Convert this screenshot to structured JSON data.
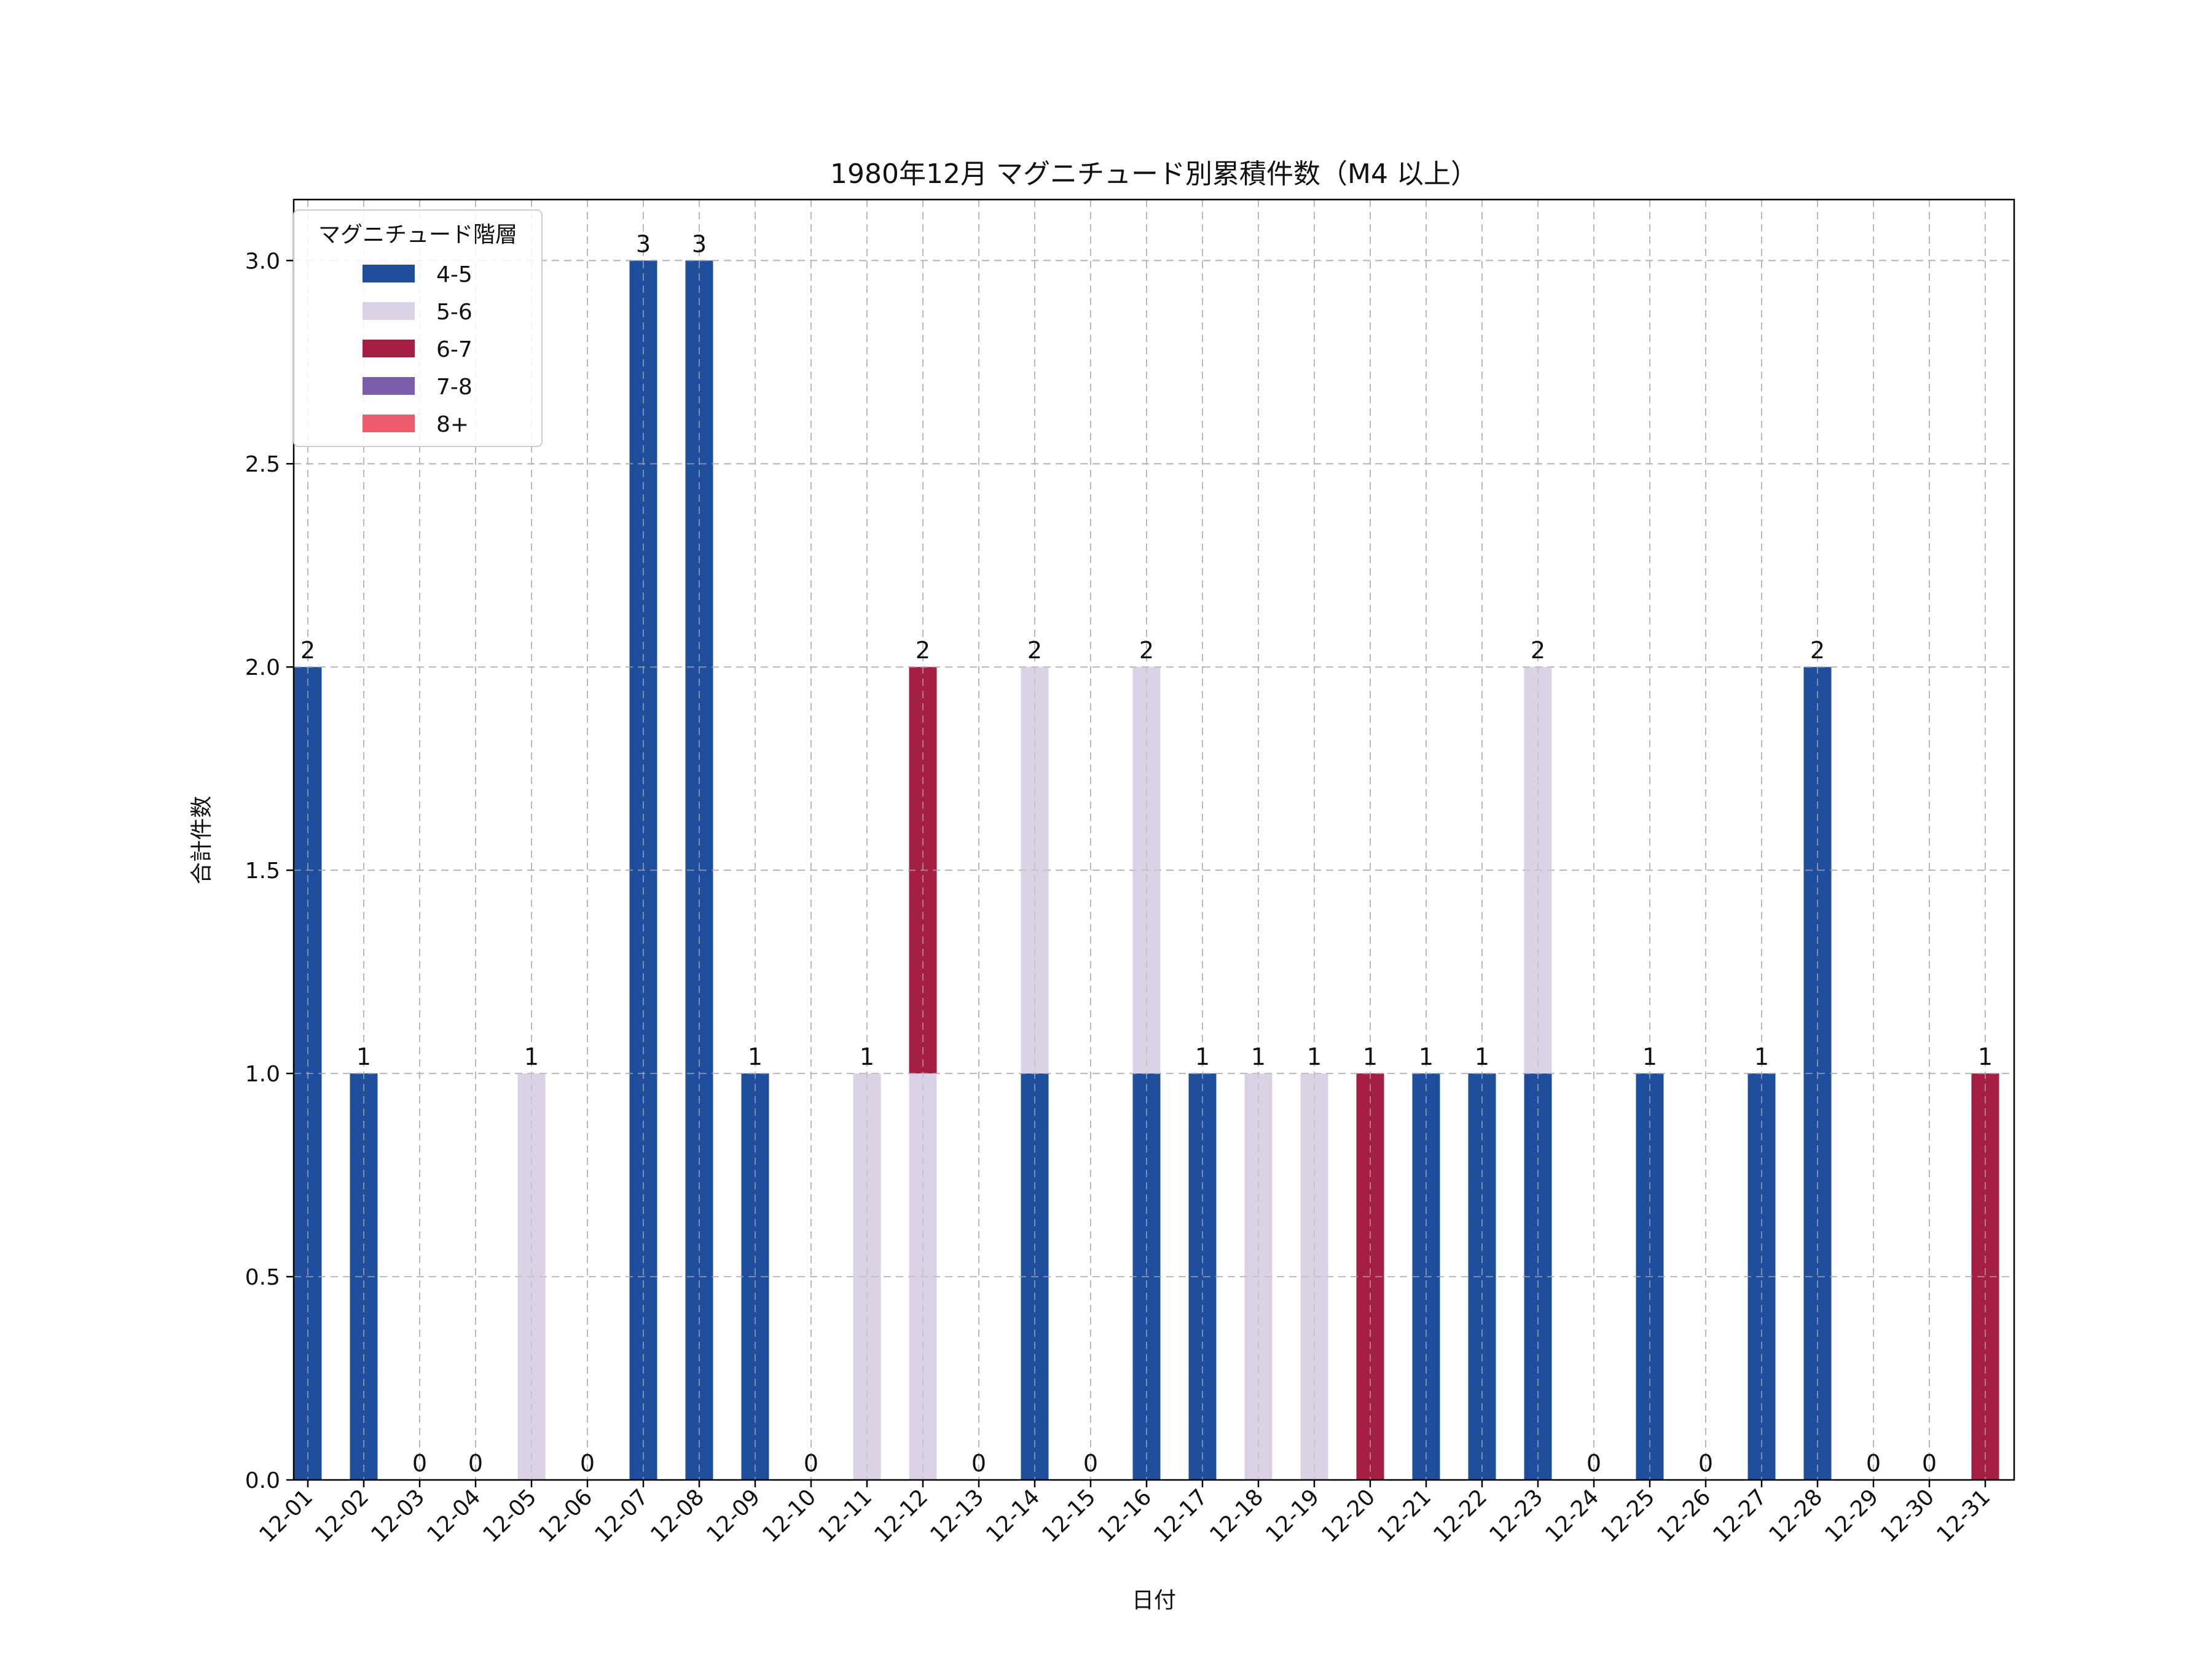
{
  "chart_data": {
    "type": "bar",
    "stacked": true,
    "title": "1980年12月 マグニチュード別累積件数（M4 以上）",
    "xlabel": "日付",
    "ylabel": "合計件数",
    "ylim": [
      0,
      3.15
    ],
    "yticks": [
      "0.0",
      "0.5",
      "1.0",
      "1.5",
      "2.0",
      "2.5",
      "3.0"
    ],
    "grid": true,
    "legend": {
      "title": "マグニチュード階層",
      "position": "top-left"
    },
    "categories": [
      "12-01",
      "12-02",
      "12-03",
      "12-04",
      "12-05",
      "12-06",
      "12-07",
      "12-08",
      "12-09",
      "12-10",
      "12-11",
      "12-12",
      "12-13",
      "12-14",
      "12-15",
      "12-16",
      "12-17",
      "12-18",
      "12-19",
      "12-20",
      "12-21",
      "12-22",
      "12-23",
      "12-24",
      "12-25",
      "12-26",
      "12-27",
      "12-28",
      "12-29",
      "12-30",
      "12-31"
    ],
    "series": [
      {
        "name": "4-5",
        "color": "#1f4e9c",
        "values": [
          2,
          1,
          0,
          0,
          0,
          0,
          3,
          3,
          1,
          0,
          0,
          0,
          0,
          1,
          0,
          1,
          1,
          0,
          0,
          0,
          1,
          1,
          1,
          0,
          1,
          0,
          1,
          2,
          0,
          0,
          0
        ]
      },
      {
        "name": "5-6",
        "color": "#dcd2e6",
        "values": [
          0,
          0,
          0,
          0,
          1,
          0,
          0,
          0,
          0,
          0,
          1,
          1,
          0,
          1,
          0,
          1,
          0,
          1,
          1,
          0,
          0,
          0,
          1,
          0,
          0,
          0,
          0,
          0,
          0,
          0,
          0
        ]
      },
      {
        "name": "6-7",
        "color": "#a51f45",
        "values": [
          0,
          0,
          0,
          0,
          0,
          0,
          0,
          0,
          0,
          0,
          0,
          1,
          0,
          0,
          0,
          0,
          0,
          0,
          0,
          1,
          0,
          0,
          0,
          0,
          0,
          0,
          0,
          0,
          0,
          0,
          1
        ]
      },
      {
        "name": "7-8",
        "color": "#7b5fab",
        "values": [
          0,
          0,
          0,
          0,
          0,
          0,
          0,
          0,
          0,
          0,
          0,
          0,
          0,
          0,
          0,
          0,
          0,
          0,
          0,
          0,
          0,
          0,
          0,
          0,
          0,
          0,
          0,
          0,
          0,
          0,
          0
        ]
      },
      {
        "name": "8+",
        "color": "#ec5b6c",
        "values": [
          0,
          0,
          0,
          0,
          0,
          0,
          0,
          0,
          0,
          0,
          0,
          0,
          0,
          0,
          0,
          0,
          0,
          0,
          0,
          0,
          0,
          0,
          0,
          0,
          0,
          0,
          0,
          0,
          0,
          0,
          0
        ]
      }
    ],
    "totals": [
      "2",
      "1",
      "0",
      "0",
      "1",
      "0",
      "3",
      "3",
      "1",
      "0",
      "1",
      "2",
      "0",
      "2",
      "0",
      "2",
      "1",
      "1",
      "1",
      "1",
      "1",
      "1",
      "2",
      "0",
      "1",
      "0",
      "1",
      "2",
      "0",
      "0",
      "1"
    ]
  }
}
